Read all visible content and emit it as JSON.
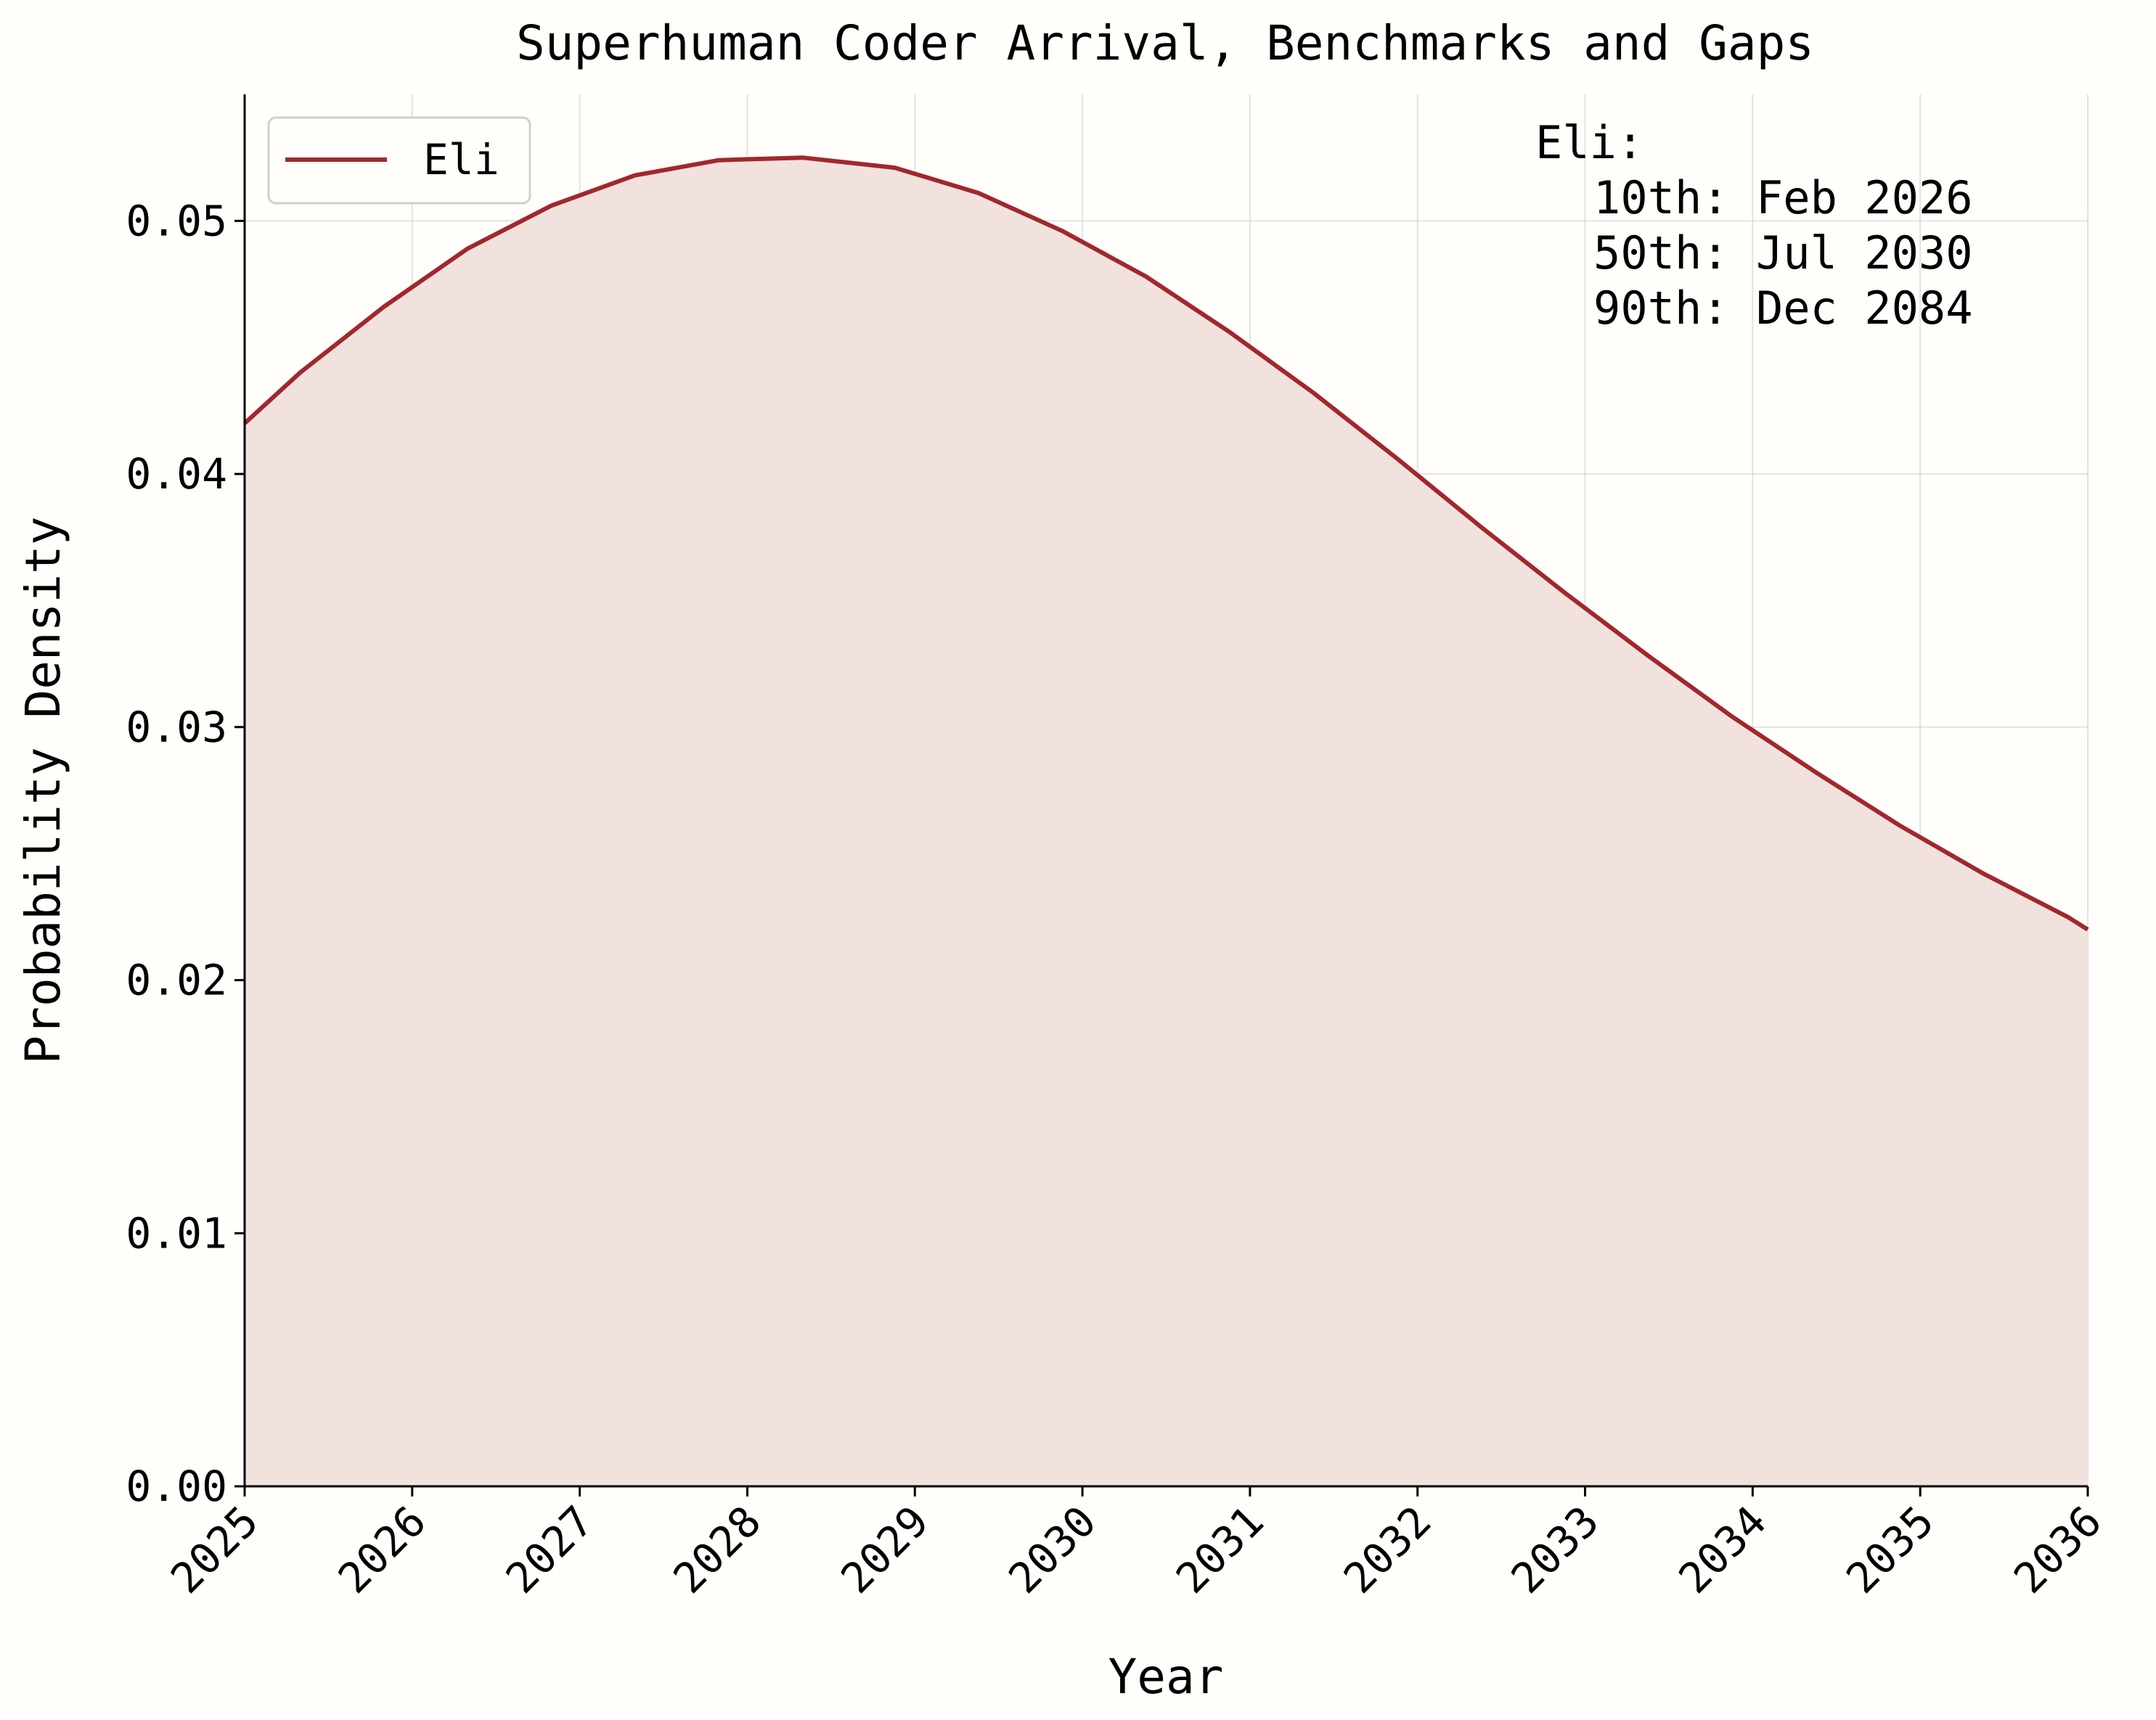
{
  "chart_data": {
    "type": "area",
    "title": "Superhuman Coder Arrival, Benchmarks and Gaps",
    "xlabel": "Year",
    "ylabel": "Probability Density",
    "xlim": [
      2025,
      2036
    ],
    "ylim": [
      0,
      0.055
    ],
    "grid": true,
    "legend_position": "top-left",
    "x_ticks": [
      "2025",
      "2026",
      "2027",
      "2028",
      "2029",
      "2030",
      "2031",
      "2032",
      "2033",
      "2034",
      "2035",
      "2036"
    ],
    "y_ticks": [
      "0.00",
      "0.01",
      "0.02",
      "0.03",
      "0.04",
      "0.05"
    ],
    "series": [
      {
        "name": "Eli",
        "color": "#a0282d",
        "fill_color": "#f2e2de",
        "x": [
          2025.0,
          2025.33,
          2025.83,
          2026.33,
          2026.83,
          2027.33,
          2027.83,
          2028.33,
          2028.88,
          2029.38,
          2029.88,
          2030.38,
          2030.88,
          2031.38,
          2031.88,
          2032.38,
          2032.88,
          2033.38,
          2033.88,
          2034.38,
          2034.88,
          2035.38,
          2035.88,
          2036.0
        ],
        "y": [
          0.042,
          0.044,
          0.0466,
          0.0489,
          0.0506,
          0.0518,
          0.0524,
          0.0525,
          0.0521,
          0.0511,
          0.0496,
          0.0478,
          0.0456,
          0.0432,
          0.0406,
          0.0379,
          0.0353,
          0.0328,
          0.0304,
          0.0282,
          0.0261,
          0.0242,
          0.0225,
          0.022
        ]
      }
    ],
    "annotation": {
      "header": "Eli:",
      "lines": [
        "10th: Feb 2026",
        "50th: Jul 2030",
        "90th: Dec 2084"
      ]
    }
  }
}
